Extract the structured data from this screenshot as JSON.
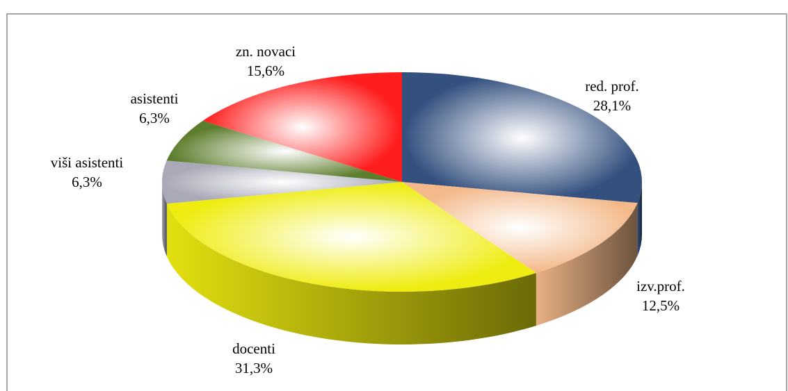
{
  "chart_data": {
    "type": "pie3d",
    "categories": [
      "red. prof.",
      "izv.prof.",
      "docenti",
      "viši asistenti",
      "asistenti",
      "zn. novaci"
    ],
    "values": [
      28.1,
      12.5,
      31.3,
      6.3,
      6.3,
      15.6
    ],
    "value_labels": [
      "28,1%",
      "12,5%",
      "31,3%",
      "6,3%",
      "6,3%",
      "15,6%"
    ],
    "colors": [
      "#34507f",
      "#f3b98a",
      "#eeec10",
      "#a9a9b8",
      "#5c7d2c",
      "#ff1e1e"
    ]
  }
}
